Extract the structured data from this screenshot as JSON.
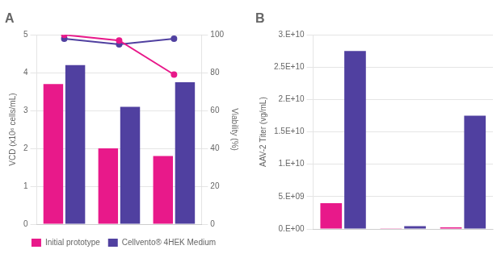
{
  "chart_data": [
    {
      "type": "bar",
      "title": "A",
      "categories": [
        null,
        null,
        null
      ],
      "series": [
        {
          "name": "Initial prototype",
          "color": "#e8198a",
          "values": [
            3.7,
            2.0,
            1.8
          ]
        },
        {
          "name": "Cellvento® 4HEK Medium",
          "color": "#5040a0",
          "values": [
            4.2,
            3.1,
            3.75
          ]
        },
        {
          "type": "line",
          "axis": "y2",
          "color": "#e8198a",
          "marker": "circle",
          "values": [
            100,
            97,
            79
          ]
        },
        {
          "type": "line",
          "axis": "y2",
          "color": "#5040a0",
          "marker": "circle",
          "values": [
            98,
            95,
            98
          ]
        }
      ],
      "ylabel": "VCD (x10⁶ cells/mL)",
      "ylim": [
        0,
        5
      ],
      "yticks": [
        0,
        1,
        2,
        3,
        4,
        5
      ],
      "y2label": "Viability (%)",
      "y2lim": [
        0,
        100
      ],
      "y2ticks": [
        0,
        20,
        40,
        60,
        80,
        100
      ],
      "grid": true,
      "legend": "bottom",
      "tick_labels": "y"
    },
    {
      "type": "bar",
      "title": "B",
      "categories": [
        null,
        null,
        null
      ],
      "series": [
        {
          "name": "Initial prototype",
          "color": "#e8198a",
          "values": [
            4000000000.0,
            100000000.0,
            250000000.0
          ]
        },
        {
          "name": "Cellvento® 4HEK Medium",
          "color": "#5040a0",
          "values": [
            27500000000.0,
            450000000.0,
            17500000000.0
          ]
        }
      ],
      "ylabel": "AAV-2 Titer (vg/mL)",
      "ylim": [
        0,
        30000000000.0
      ],
      "yticks": [
        {
          "value": 0,
          "label": "0.E+00"
        },
        {
          "value": 5000000000.0,
          "label": "5.E+09"
        },
        {
          "value": 10000000000.0,
          "label": "1.E+10"
        },
        {
          "value": 15000000000.0,
          "label": "1.5E+10"
        },
        {
          "value": 20000000000.0,
          "label": "2.E+10"
        },
        {
          "value": 25000000000.0,
          "label": "2.5E+10"
        },
        {
          "value": 30000000000.0,
          "label": "3.E+10"
        }
      ],
      "grid": true,
      "tick_labels": "y"
    }
  ]
}
